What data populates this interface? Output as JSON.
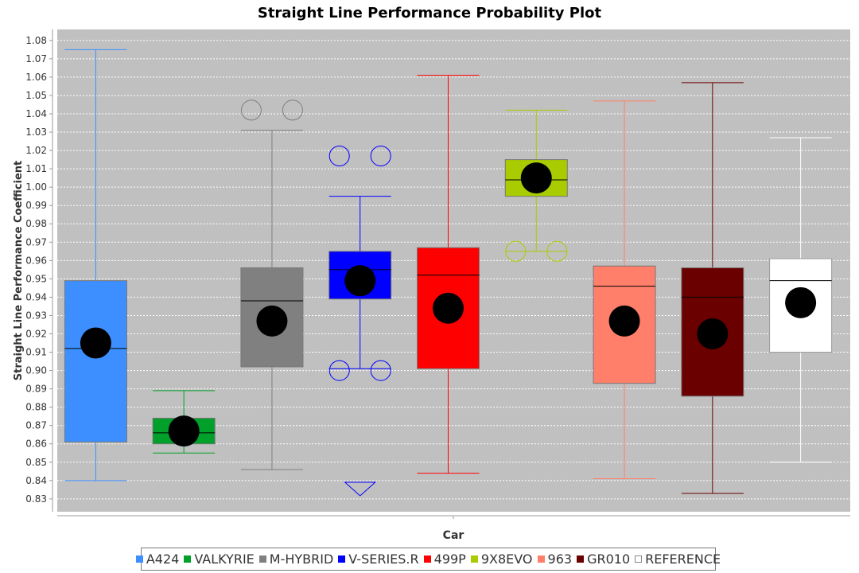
{
  "chart_data": {
    "type": "box",
    "title": "Straight Line Performance Probability Plot",
    "xlabel": "Car",
    "ylabel": "Straight Line Performance Coefficient",
    "ylim": [
      0.823,
      1.086
    ],
    "yticks": [
      "0.83",
      "0.84",
      "0.85",
      "0.86",
      "0.87",
      "0.88",
      "0.89",
      "0.90",
      "0.91",
      "0.92",
      "0.93",
      "0.94",
      "0.95",
      "0.96",
      "0.97",
      "0.98",
      "0.99",
      "1.00",
      "1.01",
      "1.02",
      "1.03",
      "1.04",
      "1.05",
      "1.06",
      "1.07",
      "1.08"
    ],
    "grid": true,
    "legend_position": "bottom",
    "plot_background": "#c0c0c0",
    "series": [
      {
        "name": "A424",
        "color": "#3d8fff",
        "min": 0.84,
        "q1": 0.861,
        "median": 0.912,
        "q3": 0.949,
        "max": 1.075,
        "mean": 0.915,
        "outliers": [],
        "far_outliers_below": false
      },
      {
        "name": "VALKYRIE",
        "color": "#00a02a",
        "min": 0.855,
        "q1": 0.86,
        "median": 0.866,
        "q3": 0.874,
        "max": 0.889,
        "mean": 0.867,
        "outliers": [],
        "far_outliers_below": false
      },
      {
        "name": "M-HYBRID",
        "color": "#808080",
        "min": 0.846,
        "q1": 0.902,
        "median": 0.938,
        "q3": 0.956,
        "max": 1.031,
        "mean": 0.927,
        "outliers": [
          1.042
        ],
        "far_outliers_below": false
      },
      {
        "name": "V-SERIES.R",
        "color": "#0000ff",
        "min": 0.901,
        "q1": 0.939,
        "median": 0.955,
        "q3": 0.965,
        "max": 0.995,
        "mean": 0.949,
        "outliers": [
          1.017,
          0.9
        ],
        "far_outliers_below": true
      },
      {
        "name": "499P",
        "color": "#ff0000",
        "min": 0.844,
        "q1": 0.901,
        "median": 0.952,
        "q3": 0.967,
        "max": 1.061,
        "mean": 0.934,
        "outliers": [],
        "far_outliers_below": false
      },
      {
        "name": "9X8EVO",
        "color": "#a8cc00",
        "min": 0.965,
        "q1": 0.995,
        "median": 1.004,
        "q3": 1.015,
        "max": 1.042,
        "mean": 1.005,
        "outliers": [
          0.965
        ],
        "far_outliers_below": false
      },
      {
        "name": "963",
        "color": "#ff7f6a",
        "min": 0.841,
        "q1": 0.893,
        "median": 0.946,
        "q3": 0.957,
        "max": 1.047,
        "mean": 0.927,
        "outliers": [],
        "far_outliers_below": false
      },
      {
        "name": "GR010",
        "color": "#6a0000",
        "min": 0.833,
        "q1": 0.886,
        "median": 0.94,
        "q3": 0.956,
        "max": 1.057,
        "mean": 0.92,
        "outliers": [],
        "far_outliers_below": false
      },
      {
        "name": "REFERENCE",
        "color": "#ffffff",
        "min": 0.85,
        "q1": 0.91,
        "median": 0.949,
        "q3": 0.961,
        "max": 1.027,
        "mean": 0.937,
        "outliers": [],
        "far_outliers_below": false
      }
    ]
  }
}
